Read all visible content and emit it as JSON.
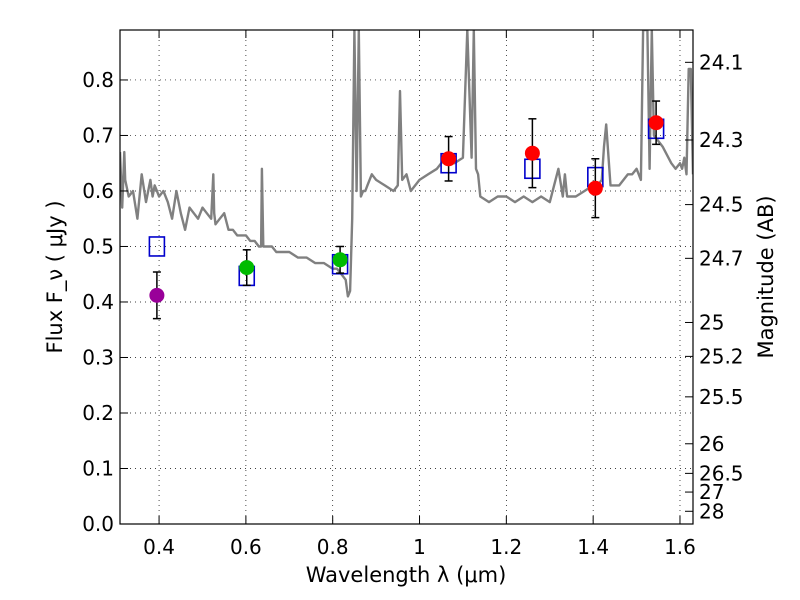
{
  "chart_data": {
    "type": "scatter",
    "xlabel": "Wavelength  λ (μm)",
    "ylabel": "Flux  F_ν  ( μJy )",
    "ylabel_right": "Magnitude (AB)",
    "xlim": [
      0.31,
      1.63
    ],
    "ylim": [
      0.0,
      0.89
    ],
    "grid": "dotted",
    "x_ticks": [
      {
        "value": 0.4,
        "label": "0.4"
      },
      {
        "value": 0.6,
        "label": "0.6"
      },
      {
        "value": 0.8,
        "label": "0.8"
      },
      {
        "value": 1.0,
        "label": "1"
      },
      {
        "value": 1.2,
        "label": "1.2"
      },
      {
        "value": 1.4,
        "label": "1.4"
      },
      {
        "value": 1.6,
        "label": "1.6"
      }
    ],
    "y_ticks": [
      {
        "value": 0.0,
        "label": "0.0"
      },
      {
        "value": 0.1,
        "label": "0.1"
      },
      {
        "value": 0.2,
        "label": "0.2"
      },
      {
        "value": 0.3,
        "label": "0.3"
      },
      {
        "value": 0.4,
        "label": "0.4"
      },
      {
        "value": 0.5,
        "label": "0.5"
      },
      {
        "value": 0.6,
        "label": "0.6"
      },
      {
        "value": 0.7,
        "label": "0.7"
      },
      {
        "value": 0.8,
        "label": "0.8"
      }
    ],
    "right_axis_ticks": [
      {
        "mag": 24.1,
        "label": "24.1"
      },
      {
        "mag": 24.3,
        "label": "24.3"
      },
      {
        "mag": 24.5,
        "label": "24.5"
      },
      {
        "mag": 24.7,
        "label": "24.7"
      },
      {
        "mag": 25.0,
        "label": "25"
      },
      {
        "mag": 25.2,
        "label": "25.2"
      },
      {
        "mag": 25.5,
        "label": "25.5"
      },
      {
        "mag": 26.0,
        "label": "26"
      },
      {
        "mag": 26.5,
        "label": "26.5"
      },
      {
        "mag": 27.0,
        "label": "27"
      },
      {
        "mag": 28.0,
        "label": "28"
      }
    ],
    "observed": [
      {
        "x": 0.395,
        "y": 0.412,
        "err": 0.042,
        "color": "#990099"
      },
      {
        "x": 0.602,
        "y": 0.462,
        "err": 0.032,
        "color": "#00bb00"
      },
      {
        "x": 0.817,
        "y": 0.476,
        "err": 0.024,
        "color": "#00bb00"
      },
      {
        "x": 1.067,
        "y": 0.658,
        "err": 0.04,
        "color": "#ff0000"
      },
      {
        "x": 1.26,
        "y": 0.668,
        "err": 0.062,
        "color": "#ff0000"
      },
      {
        "x": 1.405,
        "y": 0.605,
        "err": 0.053,
        "color": "#ff0000"
      },
      {
        "x": 1.545,
        "y": 0.723,
        "err": 0.039,
        "color": "#ff0000"
      }
    ],
    "model_points": [
      {
        "x": 0.395,
        "y": 0.5
      },
      {
        "x": 0.602,
        "y": 0.447
      },
      {
        "x": 0.817,
        "y": 0.468
      },
      {
        "x": 1.067,
        "y": 0.65
      },
      {
        "x": 1.26,
        "y": 0.64
      },
      {
        "x": 1.405,
        "y": 0.625
      },
      {
        "x": 1.545,
        "y": 0.712
      }
    ],
    "spectrum": {
      "color": "#808080",
      "x": [
        0.31,
        0.315,
        0.32,
        0.322,
        0.33,
        0.34,
        0.35,
        0.36,
        0.37,
        0.38,
        0.385,
        0.39,
        0.4,
        0.41,
        0.42,
        0.43,
        0.44,
        0.45,
        0.46,
        0.47,
        0.48,
        0.49,
        0.5,
        0.51,
        0.52,
        0.525,
        0.527,
        0.53,
        0.54,
        0.55,
        0.56,
        0.57,
        0.58,
        0.59,
        0.6,
        0.61,
        0.62,
        0.63,
        0.635,
        0.637,
        0.64,
        0.65,
        0.66,
        0.67,
        0.68,
        0.7,
        0.72,
        0.74,
        0.76,
        0.78,
        0.8,
        0.81,
        0.82,
        0.83,
        0.835,
        0.84,
        0.845,
        0.85,
        0.855,
        0.86,
        0.865,
        0.87,
        0.875,
        0.88,
        0.89,
        0.9,
        0.92,
        0.94,
        0.95,
        0.955,
        0.96,
        0.97,
        0.98,
        0.99,
        1.0,
        1.02,
        1.04,
        1.06,
        1.08,
        1.1,
        1.11,
        1.12,
        1.125,
        1.13,
        1.135,
        1.14,
        1.16,
        1.18,
        1.2,
        1.22,
        1.24,
        1.26,
        1.28,
        1.3,
        1.32,
        1.33,
        1.335,
        1.34,
        1.36,
        1.38,
        1.4,
        1.41,
        1.42,
        1.425,
        1.43,
        1.44,
        1.45,
        1.46,
        1.47,
        1.48,
        1.49,
        1.5,
        1.51,
        1.515,
        1.52,
        1.525,
        1.53,
        1.535,
        1.54,
        1.55,
        1.56,
        1.58,
        1.59,
        1.6,
        1.605,
        1.61,
        1.615,
        1.62,
        1.625,
        1.63
      ],
      "y": [
        0.67,
        0.57,
        0.67,
        0.62,
        0.59,
        0.6,
        0.55,
        0.63,
        0.58,
        0.62,
        0.59,
        0.61,
        0.59,
        0.6,
        0.58,
        0.55,
        0.6,
        0.56,
        0.53,
        0.57,
        0.56,
        0.55,
        0.57,
        0.56,
        0.55,
        0.63,
        0.56,
        0.54,
        0.55,
        0.56,
        0.53,
        0.53,
        0.52,
        0.52,
        0.52,
        0.51,
        0.51,
        0.5,
        0.5,
        0.64,
        0.5,
        0.5,
        0.5,
        0.49,
        0.49,
        0.49,
        0.48,
        0.48,
        0.47,
        0.47,
        0.46,
        0.46,
        0.45,
        0.44,
        0.41,
        0.42,
        0.55,
        0.89,
        0.6,
        0.89,
        0.59,
        0.6,
        0.6,
        0.61,
        0.63,
        0.62,
        0.61,
        0.6,
        0.61,
        0.78,
        0.62,
        0.63,
        0.6,
        0.61,
        0.62,
        0.63,
        0.64,
        0.66,
        0.65,
        0.66,
        0.89,
        0.66,
        0.89,
        0.64,
        0.63,
        0.59,
        0.58,
        0.59,
        0.59,
        0.58,
        0.59,
        0.58,
        0.59,
        0.58,
        0.64,
        0.59,
        0.63,
        0.59,
        0.59,
        0.6,
        0.61,
        0.61,
        0.62,
        0.68,
        0.72,
        0.61,
        0.61,
        0.61,
        0.62,
        0.63,
        0.63,
        0.64,
        0.62,
        0.89,
        0.89,
        0.89,
        0.64,
        0.89,
        0.7,
        0.69,
        0.68,
        0.65,
        0.64,
        0.65,
        0.64,
        0.66,
        0.63,
        0.82,
        0.82,
        0.63
      ]
    }
  }
}
